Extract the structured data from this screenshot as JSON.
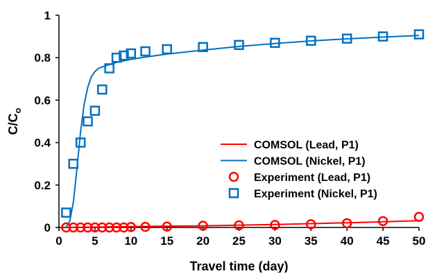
{
  "chart_data": {
    "type": "scatter",
    "xlabel": "Travel time (day)",
    "ylabel": {
      "main": "C/C",
      "sub": "o"
    },
    "xlim": [
      0,
      50
    ],
    "ylim": [
      0,
      1
    ],
    "x_ticks": [
      0,
      5,
      10,
      15,
      20,
      25,
      30,
      35,
      40,
      45,
      50
    ],
    "y_ticks": [
      0,
      0.2,
      0.4,
      0.6,
      0.8,
      1
    ],
    "y_tick_labels": [
      "0",
      "0.2",
      "0.4",
      "0.6",
      "0.8",
      "1"
    ],
    "grid": false,
    "legend_position": "center-right",
    "series": [
      {
        "name": "COMSOL (Lead, P1)",
        "kind": "line",
        "color": "#ff0000",
        "x": [
          1,
          10,
          20,
          30,
          40,
          50
        ],
        "y": [
          0,
          0.004,
          0.008,
          0.014,
          0.022,
          0.032
        ]
      },
      {
        "name": "COMSOL (Nickel, P1)",
        "kind": "line",
        "color": "#0070c0",
        "x": [
          1,
          1.5,
          2,
          2.5,
          3,
          3.5,
          4,
          4.5,
          5,
          5.5,
          6,
          7,
          8,
          10,
          12,
          15,
          20,
          25,
          30,
          35,
          40,
          45,
          50
        ],
        "y": [
          0,
          0.03,
          0.12,
          0.28,
          0.45,
          0.58,
          0.66,
          0.71,
          0.735,
          0.75,
          0.757,
          0.768,
          0.778,
          0.792,
          0.803,
          0.817,
          0.836,
          0.853,
          0.867,
          0.879,
          0.889,
          0.897,
          0.905
        ]
      },
      {
        "name": "Experiment (Lead, P1)",
        "kind": "markers",
        "marker": "circle",
        "color": "#ff0000",
        "x": [
          1,
          2,
          3,
          4,
          5,
          6,
          7,
          8,
          9,
          10,
          12,
          15,
          20,
          25,
          30,
          35,
          40,
          45,
          50
        ],
        "y": [
          0,
          0,
          0,
          0,
          0,
          0,
          0,
          0,
          0,
          0.002,
          0.003,
          0.004,
          0.008,
          0.01,
          0.012,
          0.015,
          0.02,
          0.03,
          0.05
        ]
      },
      {
        "name": "Experiment (Nickel, P1)",
        "kind": "markers",
        "marker": "square",
        "color": "#0070c0",
        "x": [
          1,
          2,
          3,
          4,
          5,
          6,
          7,
          8,
          9,
          10,
          12,
          15,
          20,
          25,
          30,
          35,
          40,
          45,
          50
        ],
        "y": [
          0.07,
          0.3,
          0.4,
          0.5,
          0.55,
          0.65,
          0.75,
          0.8,
          0.81,
          0.82,
          0.83,
          0.84,
          0.85,
          0.86,
          0.87,
          0.88,
          0.89,
          0.9,
          0.91
        ]
      }
    ]
  }
}
